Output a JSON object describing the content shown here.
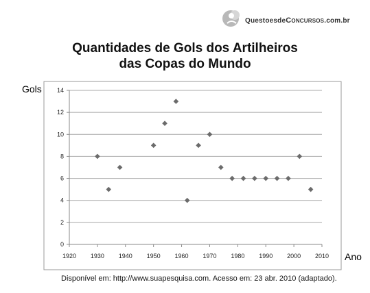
{
  "logo": {
    "text_prefix": "Questoesde",
    "text_caps": "Concursos",
    "text_suffix": ".com.br"
  },
  "chart_data": {
    "type": "scatter",
    "title_line1": "Quantidades de Gols dos Artilheiros",
    "title_line2": "das Copas do Mundo",
    "xlabel": "Ano",
    "ylabel": "Gols",
    "xlim": [
      1920,
      2010
    ],
    "ylim": [
      0,
      14
    ],
    "xticks": [
      1920,
      1930,
      1940,
      1950,
      1960,
      1970,
      1980,
      1990,
      2000,
      2010
    ],
    "yticks": [
      0,
      2,
      4,
      6,
      8,
      10,
      12,
      14
    ],
    "grid": true,
    "marker_color": "#6b6b6b",
    "points": [
      {
        "x": 1930,
        "y": 8
      },
      {
        "x": 1934,
        "y": 5
      },
      {
        "x": 1938,
        "y": 7
      },
      {
        "x": 1950,
        "y": 9
      },
      {
        "x": 1954,
        "y": 11
      },
      {
        "x": 1958,
        "y": 13
      },
      {
        "x": 1962,
        "y": 4
      },
      {
        "x": 1966,
        "y": 9
      },
      {
        "x": 1970,
        "y": 10
      },
      {
        "x": 1974,
        "y": 7
      },
      {
        "x": 1978,
        "y": 6
      },
      {
        "x": 1982,
        "y": 6
      },
      {
        "x": 1986,
        "y": 6
      },
      {
        "x": 1990,
        "y": 6
      },
      {
        "x": 1994,
        "y": 6
      },
      {
        "x": 1998,
        "y": 6
      },
      {
        "x": 2002,
        "y": 8
      },
      {
        "x": 2006,
        "y": 5
      }
    ]
  },
  "source": "Disponível em: http://www.suapesquisa.com. Acesso em: 23 abr. 2010 (adaptado)."
}
